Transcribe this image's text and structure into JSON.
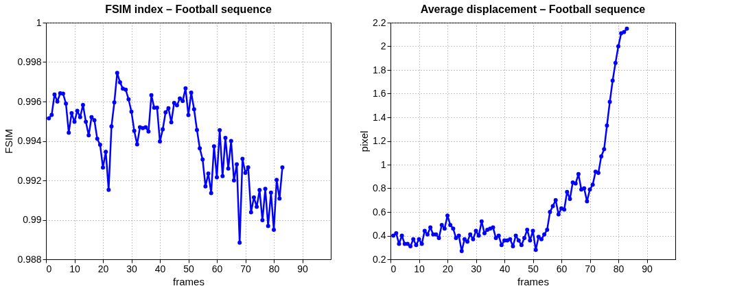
{
  "chart_data": [
    {
      "type": "line",
      "title": "FSIM index – Football sequence",
      "xlabel": "frames",
      "ylabel": "FSIM",
      "x": [
        1,
        2,
        3,
        4,
        5,
        6,
        7,
        8,
        9,
        10,
        11,
        12,
        13,
        14,
        15,
        16,
        17,
        18,
        19,
        20,
        21,
        22,
        23,
        24,
        25,
        26,
        27,
        28,
        29,
        30,
        31,
        32,
        33,
        34,
        35,
        36,
        37,
        38,
        39,
        40,
        41,
        42,
        43,
        44,
        45,
        46,
        47,
        48,
        49,
        50,
        51,
        52,
        53,
        54,
        55,
        56,
        57,
        58,
        59,
        60,
        61,
        62,
        63,
        64,
        65,
        66,
        67,
        68,
        69,
        70,
        71,
        72,
        73,
        74,
        75,
        76,
        77,
        78,
        79,
        80,
        81,
        82,
        83
      ],
      "series": [
        {
          "color": "#0000ff",
          "values": [
            0.99515,
            0.99532,
            0.99636,
            0.996,
            0.99642,
            0.9964,
            0.9959,
            0.99442,
            0.99541,
            0.99497,
            0.99553,
            0.99521,
            0.99583,
            0.99497,
            0.99429,
            0.99521,
            0.99505,
            0.99411,
            0.99381,
            0.99265,
            0.99345,
            0.99152,
            0.99474,
            0.99596,
            0.99745,
            0.99697,
            0.99665,
            0.9966,
            0.99611,
            0.99549,
            0.99451,
            0.99383,
            0.9947,
            0.99465,
            0.9947,
            0.99448,
            0.99632,
            0.99569,
            0.99569,
            0.99397,
            0.99459,
            0.99545,
            0.99566,
            0.99495,
            0.99593,
            0.99581,
            0.99616,
            0.99603,
            0.99667,
            0.99531,
            0.99645,
            0.99561,
            0.99456,
            0.99363,
            0.99306,
            0.9917,
            0.99235,
            0.99136,
            0.99373,
            0.99216,
            0.99455,
            0.99222,
            0.99416,
            0.9926,
            0.994,
            0.992,
            0.99282,
            0.98884,
            0.9931,
            0.99238,
            0.99266,
            0.99038,
            0.99114,
            0.99066,
            0.99151,
            0.98998,
            0.99157,
            0.98969,
            0.99138,
            0.9895,
            0.99203,
            0.99108,
            0.99266
          ]
        }
      ],
      "xlim": [
        0,
        100
      ],
      "xticks": [
        0,
        10,
        20,
        30,
        40,
        50,
        60,
        70,
        80,
        90
      ],
      "ylim": [
        0.988,
        1
      ],
      "yticks": [
        0.988,
        0.99,
        0.992,
        0.994,
        0.996,
        0.998,
        1
      ],
      "grid": true,
      "marker": "circle",
      "line_style": "solid"
    },
    {
      "type": "line",
      "title": "Average displacement – Football sequence",
      "xlabel": "frames",
      "ylabel": "pixel",
      "x": [
        1,
        2,
        3,
        4,
        5,
        6,
        7,
        8,
        9,
        10,
        11,
        12,
        13,
        14,
        15,
        16,
        17,
        18,
        19,
        20,
        21,
        22,
        23,
        24,
        25,
        26,
        27,
        28,
        29,
        30,
        31,
        32,
        33,
        34,
        35,
        36,
        37,
        38,
        39,
        40,
        41,
        42,
        43,
        44,
        45,
        46,
        47,
        48,
        49,
        50,
        51,
        52,
        53,
        54,
        55,
        56,
        57,
        58,
        59,
        60,
        61,
        62,
        63,
        64,
        65,
        66,
        67,
        68,
        69,
        70,
        71,
        72,
        73,
        74,
        75,
        76,
        77,
        78,
        79,
        80,
        81,
        82,
        83
      ],
      "series": [
        {
          "color": "#0000ff",
          "values": [
            0.4,
            0.42,
            0.33,
            0.4,
            0.33,
            0.33,
            0.31,
            0.37,
            0.32,
            0.37,
            0.33,
            0.44,
            0.41,
            0.47,
            0.41,
            0.41,
            0.38,
            0.49,
            0.46,
            0.57,
            0.49,
            0.46,
            0.38,
            0.4,
            0.27,
            0.37,
            0.35,
            0.41,
            0.37,
            0.44,
            0.4,
            0.52,
            0.42,
            0.45,
            0.46,
            0.47,
            0.38,
            0.4,
            0.32,
            0.36,
            0.36,
            0.37,
            0.31,
            0.4,
            0.36,
            0.32,
            0.38,
            0.45,
            0.36,
            0.44,
            0.28,
            0.39,
            0.37,
            0.41,
            0.45,
            0.6,
            0.65,
            0.7,
            0.58,
            0.63,
            0.62,
            0.77,
            0.71,
            0.85,
            0.84,
            0.92,
            0.79,
            0.8,
            0.69,
            0.79,
            0.83,
            0.94,
            0.93,
            1.07,
            1.13,
            1.33,
            1.53,
            1.71,
            1.86,
            2.0,
            2.11,
            2.12,
            2.15
          ]
        }
      ],
      "xlim": [
        0,
        100
      ],
      "xticks": [
        0,
        10,
        20,
        30,
        40,
        50,
        60,
        70,
        80,
        90
      ],
      "ylim": [
        0.2,
        2.2
      ],
      "yticks": [
        0.2,
        0.4,
        0.6,
        0.8,
        1,
        1.2,
        1.4,
        1.6,
        1.8,
        2,
        2.2
      ],
      "grid": true,
      "marker": "circle",
      "line_style": "solid"
    }
  ]
}
